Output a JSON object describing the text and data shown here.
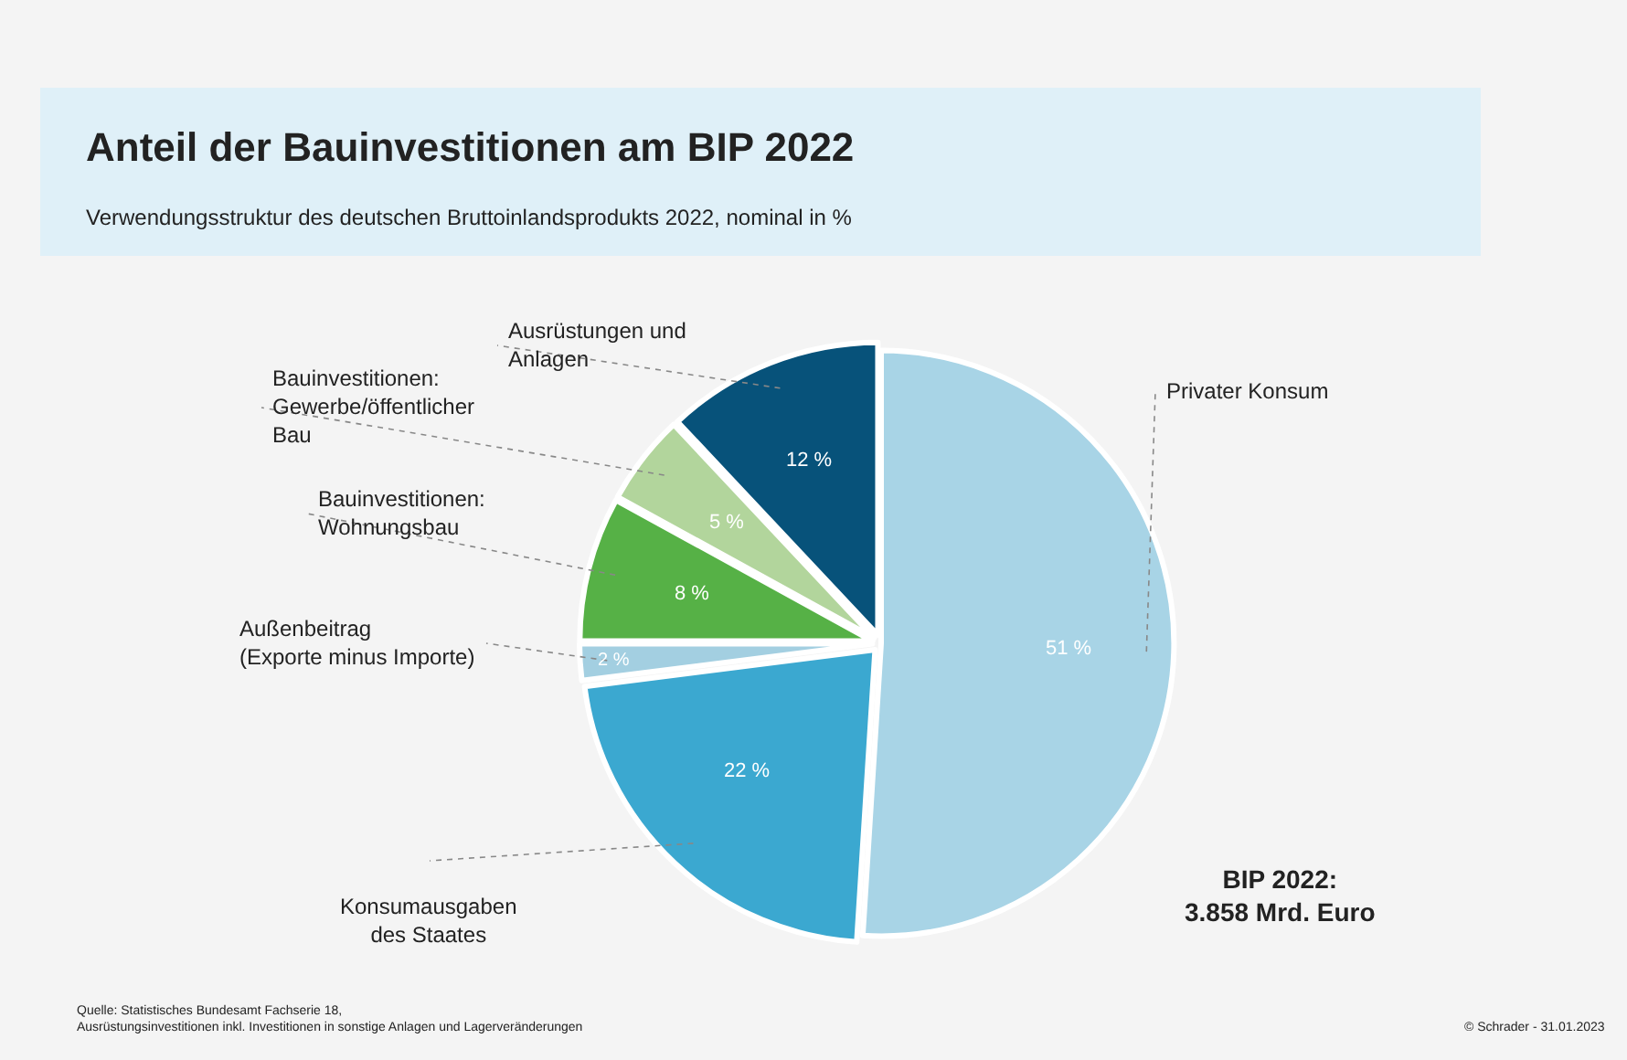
{
  "chart_data": {
    "type": "pie",
    "title": "Anteil der Bauinvestitionen am BIP 2022",
    "subtitle": "Verwendungsstruktur des deutschen Bruttoinlandsprodukts 2022, nominal in %",
    "categories": [
      "Privater Konsum",
      "Konsumausgaben des Staates",
      "Außenbeitrag (Exporte minus Importe)",
      "Bauinvestitionen: Wohnungsbau",
      "Bauinvestitionen: Gewerbe/öffentlicher Bau",
      "Ausrüstungen und Anlagen"
    ],
    "values": [
      51,
      22,
      2,
      8,
      5,
      12
    ],
    "value_labels": [
      "51 %",
      "22 %",
      "2 %",
      "8 %",
      "5 %",
      "12 %"
    ],
    "colors": [
      "#a8d4e6",
      "#3ba8d0",
      "#a3cfe1",
      "#56b146",
      "#b2d59c",
      "#07527a"
    ],
    "annotations": [
      "BIP 2022:\n3.858 Mrd. Euro",
      "Quelle: Statistisches Bundesamt Fachserie 18,\nAusrüstungsinvestitionen inkl. Investitionen in sonstige Anlagen und Lagerveränderungen",
      "© Schrader - 31.01.2023"
    ],
    "legend": false
  }
}
